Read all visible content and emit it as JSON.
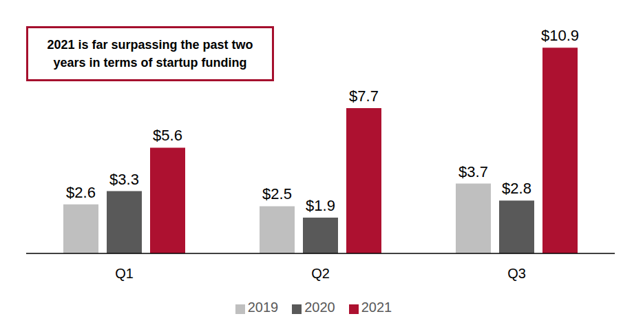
{
  "chart_data": {
    "type": "bar",
    "annotation": "2021 is far surpassing the past two years in terms of startup funding",
    "categories": [
      "Q1",
      "Q2",
      "Q3"
    ],
    "series": [
      {
        "name": "2019",
        "color": "#bfbfbf",
        "values": [
          2.6,
          2.5,
          3.7
        ],
        "value_labels": [
          "$2.6",
          "$2.5",
          "$3.7"
        ]
      },
      {
        "name": "2020",
        "color": "#595959",
        "values": [
          3.3,
          1.9,
          2.8
        ],
        "value_labels": [
          "$3.3",
          "$1.9",
          "$2.8"
        ]
      },
      {
        "name": "2021",
        "color": "#ad1130",
        "values": [
          5.6,
          7.7,
          10.9
        ],
        "value_labels": [
          "$5.6",
          "$7.7",
          "$10.9"
        ]
      }
    ],
    "ylim": [
      0,
      12
    ],
    "data_labels": true,
    "tick_labels": "x",
    "legend": "bottom",
    "grid": false
  }
}
